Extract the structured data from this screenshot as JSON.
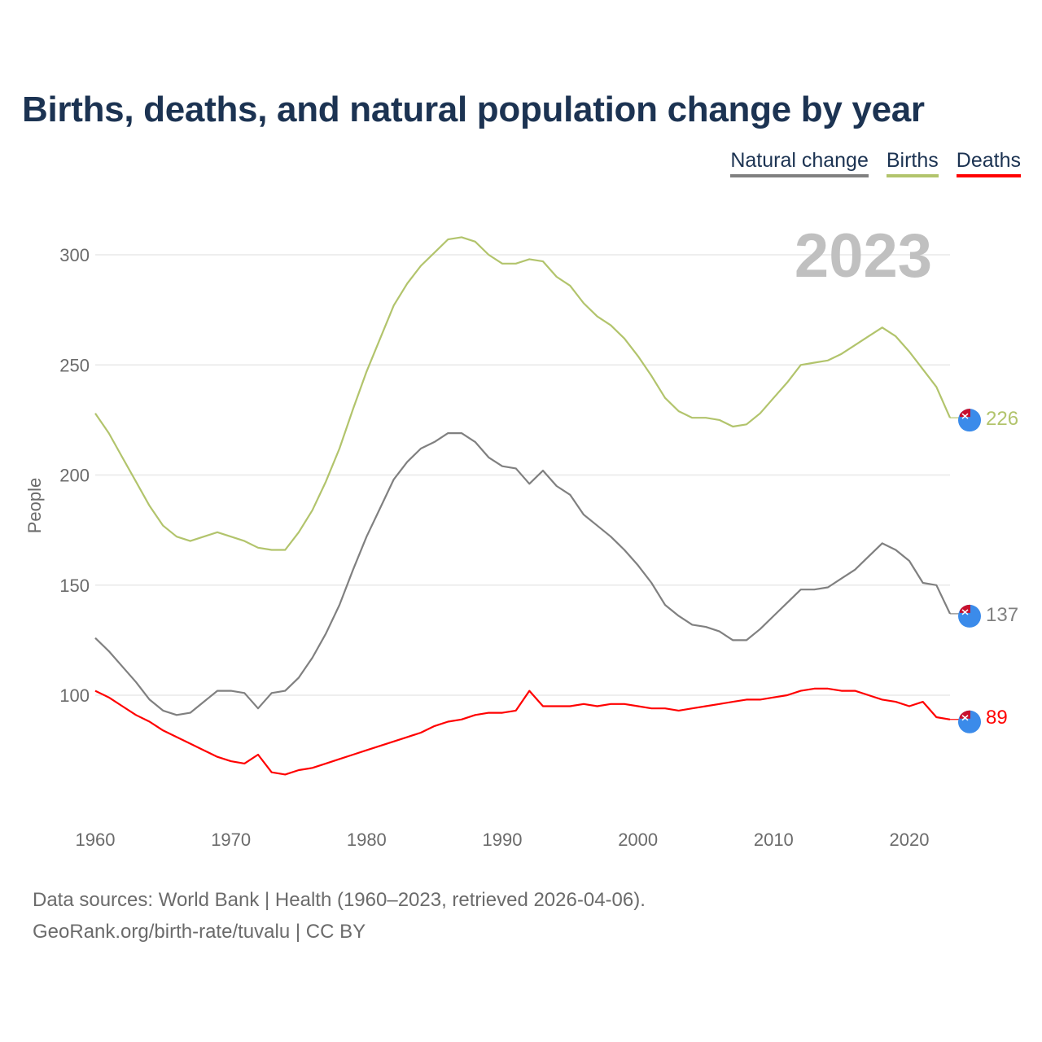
{
  "title": "Births, deaths, and natural population change by year",
  "legend": [
    {
      "label": "Natural change",
      "color": "#808080"
    },
    {
      "label": "Births",
      "color": "#b2c46c"
    },
    {
      "label": "Deaths",
      "color": "#ff0000"
    }
  ],
  "footer": {
    "line1": "Data sources: World Bank | Health (1960–2023, retrieved 2026-04-06).",
    "line2": "GeoRank.org/birth-rate/tuvalu | CC BY"
  },
  "chart_data": {
    "type": "line",
    "title": "Births, deaths, and natural population change by year",
    "xlabel": "",
    "ylabel": "People",
    "year_watermark": "2023",
    "xlim": [
      1960,
      2023
    ],
    "ylim": [
      50,
      325
    ],
    "x_ticks": [
      1960,
      1970,
      1980,
      1990,
      2000,
      2010,
      2020
    ],
    "y_ticks": [
      100,
      150,
      200,
      250,
      300
    ],
    "grid": true,
    "legend_position": "top-right",
    "x_start": 1960,
    "series": [
      {
        "name": "Natural change",
        "color": "#808080",
        "end_label": "137",
        "values": [
          126,
          120,
          113,
          106,
          98,
          93,
          91,
          92,
          97,
          102,
          102,
          101,
          94,
          101,
          102,
          108,
          117,
          128,
          141,
          157,
          172,
          185,
          198,
          206,
          212,
          215,
          219,
          219,
          215,
          208,
          204,
          203,
          196,
          202,
          195,
          191,
          182,
          177,
          172,
          166,
          159,
          151,
          141,
          136,
          132,
          131,
          129,
          125,
          125,
          130,
          136,
          142,
          148,
          148,
          149,
          153,
          157,
          163,
          169,
          166,
          161,
          151,
          150,
          137
        ]
      },
      {
        "name": "Births",
        "color": "#b2c46c",
        "end_label": "226",
        "values": [
          228,
          219,
          208,
          197,
          186,
          177,
          172,
          170,
          172,
          174,
          172,
          170,
          167,
          166,
          166,
          174,
          184,
          197,
          212,
          230,
          247,
          262,
          277,
          287,
          295,
          301,
          307,
          308,
          306,
          300,
          296,
          296,
          298,
          297,
          290,
          286,
          278,
          272,
          268,
          262,
          254,
          245,
          235,
          229,
          226,
          226,
          225,
          222,
          223,
          228,
          235,
          242,
          250,
          251,
          252,
          255,
          259,
          263,
          267,
          263,
          256,
          248,
          240,
          226
        ]
      },
      {
        "name": "Deaths",
        "color": "#ff0000",
        "end_label": "89",
        "values": [
          102,
          99,
          95,
          91,
          88,
          84,
          81,
          78,
          75,
          72,
          70,
          69,
          73,
          65,
          64,
          66,
          67,
          69,
          71,
          73,
          75,
          77,
          79,
          81,
          83,
          86,
          88,
          89,
          91,
          92,
          92,
          93,
          102,
          95,
          95,
          95,
          96,
          95,
          96,
          96,
          95,
          94,
          94,
          93,
          94,
          95,
          96,
          97,
          98,
          98,
          99,
          100,
          102,
          103,
          103,
          102,
          102,
          100,
          98,
          97,
          95,
          97,
          90,
          89
        ]
      }
    ]
  }
}
